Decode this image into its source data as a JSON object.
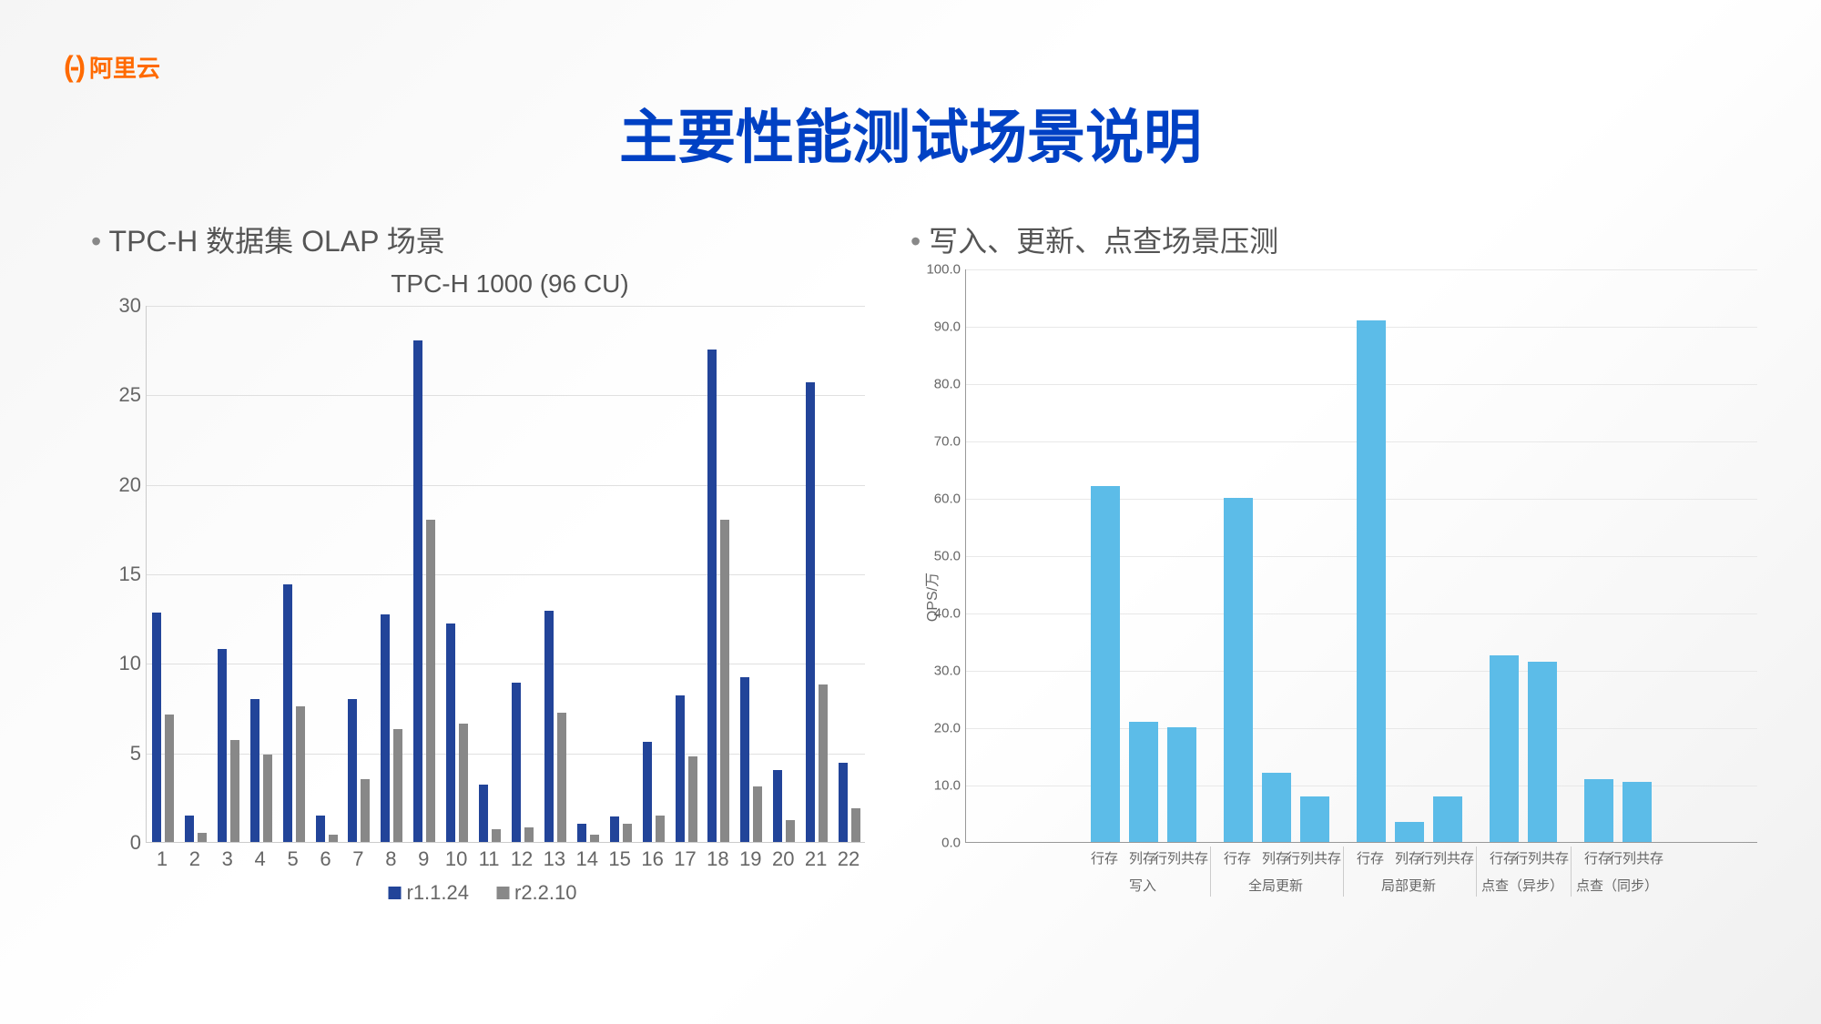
{
  "logo": {
    "text": "阿里云"
  },
  "title": "主要性能测试场景说明",
  "left": {
    "bullet": "TPC-H 数据集 OLAP 场景",
    "subtitle": "TPC-H 1000 (96 CU)",
    "chart": {
      "type": "bar",
      "ylim": [
        0,
        30
      ],
      "ytick_step": 5,
      "categories": [
        "1",
        "2",
        "3",
        "4",
        "5",
        "6",
        "7",
        "8",
        "9",
        "10",
        "11",
        "12",
        "13",
        "14",
        "15",
        "16",
        "17",
        "18",
        "19",
        "20",
        "21",
        "22"
      ],
      "series": [
        {
          "name": "r1.1.24",
          "color": "#224499",
          "values": [
            12.8,
            1.5,
            10.8,
            8.0,
            14.4,
            1.5,
            8.0,
            12.7,
            28.0,
            12.2,
            3.2,
            8.9,
            12.9,
            1.0,
            1.4,
            5.6,
            8.2,
            27.5,
            9.2,
            4.0,
            25.7,
            4.4
          ]
        },
        {
          "name": "r2.2.10",
          "color": "#888888",
          "values": [
            7.1,
            0.5,
            5.7,
            4.9,
            7.6,
            0.4,
            3.5,
            6.3,
            18.0,
            6.6,
            0.7,
            0.8,
            7.2,
            0.4,
            1.0,
            1.5,
            4.8,
            18.0,
            3.1,
            1.2,
            8.8,
            1.9
          ]
        }
      ],
      "grid_color": "#e0e0e0",
      "label_fontsize": 22
    }
  },
  "right": {
    "bullet": "写入、更新、点查场景压测",
    "chart": {
      "type": "bar",
      "ylim": [
        0,
        100
      ],
      "ytick_step": 10,
      "ylabel": "QPS/万",
      "bar_color": "#5cbce8",
      "grid_color": "#e8e8e8",
      "label_fontsize": 15,
      "groups": [
        {
          "name": "写入",
          "items": [
            {
              "label": "行存",
              "value": 62
            },
            {
              "label": "列存",
              "value": 21
            },
            {
              "label": "行列共存",
              "value": 20
            }
          ]
        },
        {
          "name": "全局更新",
          "items": [
            {
              "label": "行存",
              "value": 60
            },
            {
              "label": "列存",
              "value": 12
            },
            {
              "label": "行列共存",
              "value": 8
            }
          ]
        },
        {
          "name": "局部更新",
          "items": [
            {
              "label": "行存",
              "value": 91
            },
            {
              "label": "列存",
              "value": 3.5
            },
            {
              "label": "行列共存",
              "value": 8
            }
          ]
        },
        {
          "name": "点查（异步）",
          "items": [
            {
              "label": "行存",
              "value": 32.5
            },
            {
              "label": "行列共存",
              "value": 31.5
            }
          ]
        },
        {
          "name": "点查（同步）",
          "items": [
            {
              "label": "行存",
              "value": 11
            },
            {
              "label": "行列共存",
              "value": 10.5
            }
          ]
        }
      ]
    }
  }
}
